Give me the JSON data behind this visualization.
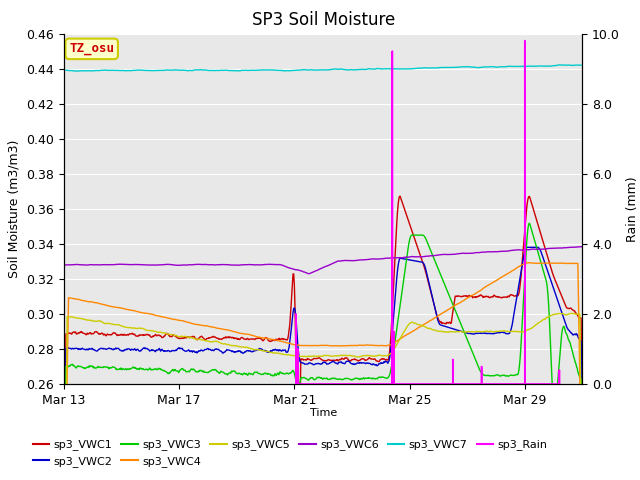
{
  "title": "SP3 Soil Moisture",
  "ylabel_left": "Soil Moisture (m3/m3)",
  "ylabel_right": "Rain (mm)",
  "xlabel": "Time",
  "ylim_left": [
    0.26,
    0.46
  ],
  "ylim_right": [
    0.0,
    10.0
  ],
  "x_tick_labels": [
    "Mar 13",
    "Mar 17",
    "Mar 21",
    "Mar 25",
    "Mar 29"
  ],
  "x_tick_positions": [
    0,
    4,
    8,
    12,
    16
  ],
  "fig_facecolor": "#ffffff",
  "ax_facecolor": "#e8e8e8",
  "label_box_facecolor": "#ffffcc",
  "label_box_edgecolor": "#cccc00",
  "label_text": "TZ_osu",
  "label_text_color": "#cc0000",
  "grid_color": "#ffffff",
  "colors": {
    "VWC1": "#cc0000",
    "VWC2": "#0000cc",
    "VWC3": "#00cc00",
    "VWC4": "#ff8800",
    "VWC5": "#cccc00",
    "VWC6": "#9900cc",
    "VWC7": "#00cccc",
    "Rain": "#ff00ff"
  },
  "legend_labels": [
    "sp3_VWC1",
    "sp3_VWC2",
    "sp3_VWC3",
    "sp3_VWC4",
    "sp3_VWC5",
    "sp3_VWC6",
    "sp3_VWC7",
    "sp3_Rain"
  ]
}
